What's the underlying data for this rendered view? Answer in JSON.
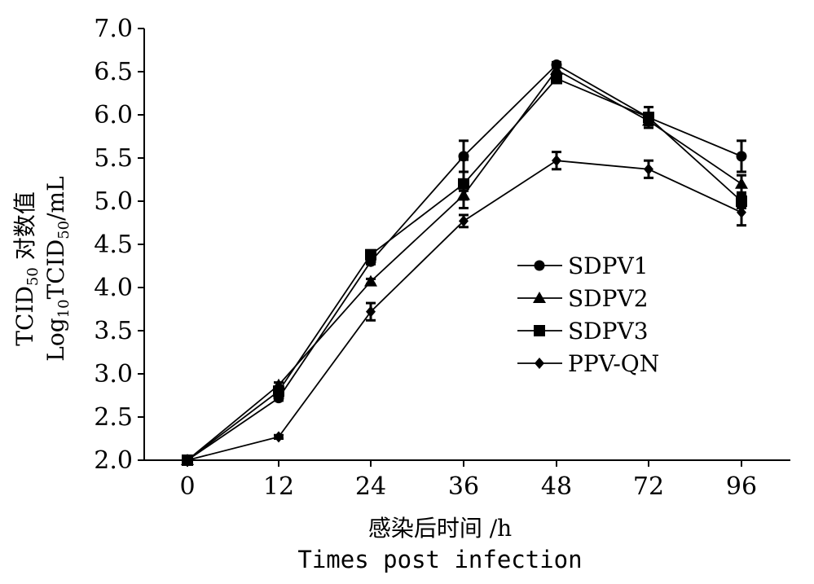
{
  "chart_data": {
    "type": "line",
    "x_categories": [
      "0",
      "12",
      "24",
      "36",
      "48",
      "72",
      "96"
    ],
    "y_ticks": [
      "2.0",
      "2.5",
      "3.0",
      "3.5",
      "4.0",
      "4.5",
      "5.0",
      "5.5",
      "6.0",
      "6.5",
      "7.0"
    ],
    "ylim": [
      2.0,
      7.0
    ],
    "xlabel_cn": "感染后时间 /h",
    "xlabel_en": "Times post infection",
    "ylabel_line1": {
      "pre": "TCID",
      "sub": "50",
      "post": " 对数值"
    },
    "ylabel_line2": {
      "pre": "Log",
      "sub1": "10",
      "mid": "TCID",
      "sub2": "50",
      "post": "/mL"
    },
    "legend_position": "center-right",
    "series": [
      {
        "name": "SDPV1",
        "marker": "circle",
        "values": [
          2.0,
          2.72,
          4.3,
          5.52,
          6.58,
          5.97,
          5.52
        ],
        "errors": [
          0.0,
          0.03,
          0.03,
          0.18,
          0.03,
          0.05,
          0.18
        ]
      },
      {
        "name": "SDPV2",
        "marker": "triangle",
        "values": [
          2.0,
          2.87,
          4.07,
          5.07,
          6.52,
          5.93,
          5.2
        ],
        "errors": [
          0.0,
          0.03,
          0.03,
          0.05,
          0.03,
          0.05,
          0.1
        ]
      },
      {
        "name": "SDPV3",
        "marker": "square",
        "values": [
          2.0,
          2.8,
          4.38,
          5.2,
          6.42,
          5.97,
          5.0
        ],
        "errors": [
          0.0,
          0.03,
          0.05,
          0.28,
          0.05,
          0.12,
          0.08
        ]
      },
      {
        "name": "PPV-QN",
        "marker": "diamond",
        "values": [
          2.0,
          2.27,
          3.72,
          4.77,
          5.47,
          5.37,
          4.87
        ],
        "errors": [
          0.0,
          0.02,
          0.1,
          0.07,
          0.1,
          0.1,
          0.15
        ]
      }
    ]
  }
}
